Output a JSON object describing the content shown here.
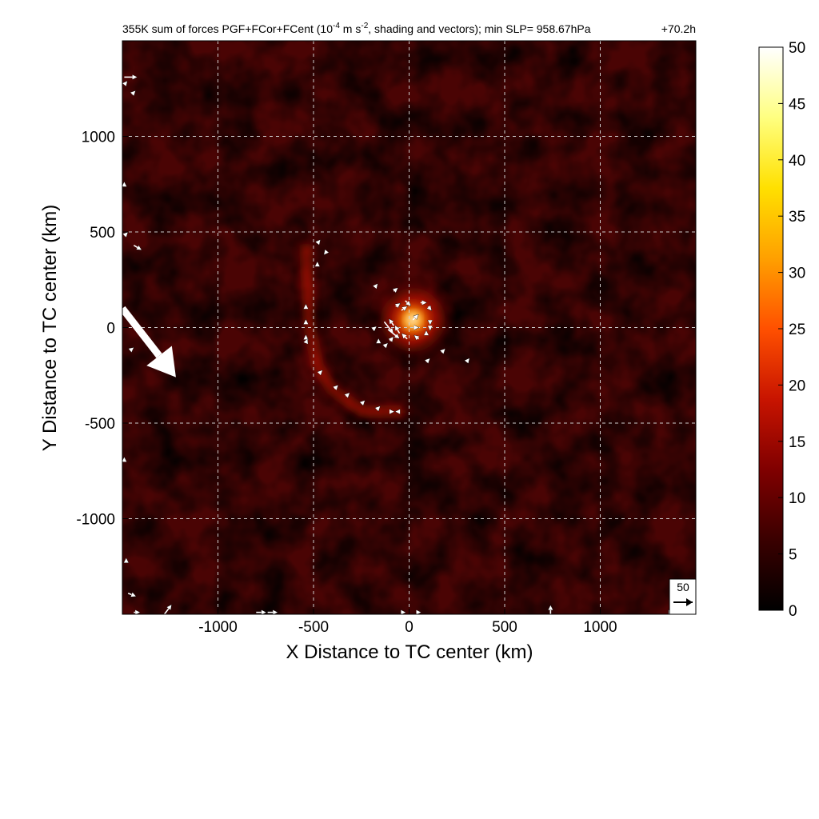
{
  "chart_data": {
    "type": "heatmap",
    "title": {
      "prefix": "355K sum of forces PGF+FCor+FCent (10",
      "exp1": "-4",
      "mid": " m s",
      "exp2": "-2",
      "suffix": ", shading and vectors); min SLP= 958.67hPa"
    },
    "time_label": "+70.2h",
    "xlabel": "X Distance to TC center (km)",
    "ylabel": "Y Distance to TC center (km)",
    "xlim": [
      -1500,
      1500
    ],
    "ylim": [
      -1500,
      1500
    ],
    "x_ticks": [
      {
        "value": -1000,
        "label": "-1000"
      },
      {
        "value": -500,
        "label": "-500"
      },
      {
        "value": 0,
        "label": "0"
      },
      {
        "value": 500,
        "label": "500"
      },
      {
        "value": 1000,
        "label": "1000"
      }
    ],
    "y_ticks": [
      {
        "value": 1000,
        "label": "1000"
      },
      {
        "value": 500,
        "label": "500"
      },
      {
        "value": 0,
        "label": "0"
      },
      {
        "value": -500,
        "label": "-500"
      },
      {
        "value": -1000,
        "label": "-1000"
      }
    ],
    "grid": true,
    "colorbar": {
      "range": [
        0,
        50
      ],
      "ticks": [
        {
          "value": 50,
          "label": "50"
        },
        {
          "value": 45,
          "label": "45"
        },
        {
          "value": 40,
          "label": "40"
        },
        {
          "value": 35,
          "label": "35"
        },
        {
          "value": 30,
          "label": "30"
        },
        {
          "value": 25,
          "label": "25"
        },
        {
          "value": 20,
          "label": "20"
        },
        {
          "value": 15,
          "label": "15"
        },
        {
          "value": 10,
          "label": "10"
        },
        {
          "value": 5,
          "label": "5"
        },
        {
          "value": 0,
          "label": "0"
        }
      ],
      "colors": [
        "#000000",
        "#3a0000",
        "#800000",
        "#c81400",
        "#ff5000",
        "#ffa000",
        "#ffe000",
        "#ffff80",
        "#ffffff"
      ]
    },
    "reference_vector": {
      "value": 50,
      "label": "50"
    },
    "features": {
      "eye_max_x": 20,
      "eye_max_y": 40,
      "eye_max_value": 48,
      "spiral_band_value": 20,
      "spiral_band_points": [
        [
          -540,
          420
        ],
        [
          -530,
          220
        ],
        [
          -520,
          0
        ],
        [
          -480,
          -200
        ],
        [
          -400,
          -330
        ],
        [
          -240,
          -440
        ],
        [
          -40,
          -440
        ]
      ],
      "large_vector": {
        "x0": -1500,
        "y0": 100,
        "x1": -1220,
        "y1": -260
      }
    },
    "vectors": [
      [
        -1490,
        1310,
        55,
        0
      ],
      [
        -1490,
        1270,
        8,
        10
      ],
      [
        -1450,
        1220,
        10,
        10
      ],
      [
        -1490,
        480,
        10,
        10
      ],
      [
        -1440,
        430,
        30,
        -18
      ],
      [
        -1490,
        740,
        0,
        10
      ],
      [
        -1460,
        -120,
        10,
        8
      ],
      [
        -1490,
        -700,
        0,
        10
      ],
      [
        -1480,
        -1230,
        0,
        12
      ],
      [
        -1470,
        -1390,
        30,
        -12
      ],
      [
        -1280,
        -1500,
        30,
        40
      ],
      [
        -1440,
        -1490,
        20,
        0
      ],
      [
        -800,
        -1490,
        40,
        0
      ],
      [
        -740,
        -1490,
        40,
        0
      ],
      [
        740,
        -1500,
        0,
        35
      ],
      [
        1360,
        -1490,
        10,
        0
      ],
      [
        -40,
        -1490,
        10,
        0
      ],
      [
        40,
        -1490,
        10,
        0
      ],
      [
        -430,
        400,
        -8,
        -10
      ],
      [
        -480,
        440,
        8,
        10
      ],
      [
        -480,
        320,
        0,
        12
      ],
      [
        -540,
        100,
        0,
        10
      ],
      [
        -540,
        20,
        0,
        10
      ],
      [
        -540,
        -60,
        0,
        10
      ],
      [
        -540,
        -80,
        4,
        10
      ],
      [
        -470,
        -240,
        8,
        8
      ],
      [
        -390,
        -320,
        10,
        10
      ],
      [
        -330,
        -360,
        10,
        10
      ],
      [
        -250,
        -400,
        10,
        10
      ],
      [
        -170,
        -430,
        10,
        10
      ],
      [
        -100,
        -440,
        10,
        0
      ],
      [
        -50,
        -440,
        -10,
        0
      ],
      [
        -190,
        -10,
        10,
        8
      ],
      [
        90,
        -180,
        10,
        10
      ],
      [
        170,
        -130,
        10,
        10
      ],
      [
        300,
        -180,
        8,
        10
      ],
      [
        -180,
        210,
        8,
        10
      ],
      [
        -80,
        190,
        12,
        10
      ],
      [
        -20,
        140,
        20,
        -18
      ],
      [
        60,
        130,
        20,
        0
      ],
      [
        100,
        110,
        10,
        -12
      ],
      [
        110,
        40,
        0,
        -14
      ],
      [
        110,
        10,
        0,
        -14
      ],
      [
        90,
        -40,
        0,
        12
      ],
      [
        50,
        -60,
        -14,
        12
      ],
      [
        -10,
        -60,
        -20,
        20
      ],
      [
        -50,
        -30,
        -18,
        30
      ],
      [
        -80,
        10,
        -18,
        25
      ],
      [
        -130,
        30,
        40,
        -50
      ],
      [
        -110,
        -10,
        50,
        -40
      ],
      [
        -100,
        -70,
        10,
        12
      ],
      [
        -160,
        -80,
        0,
        10
      ],
      [
        -130,
        -100,
        10,
        10
      ],
      [
        20,
        40,
        20,
        20
      ],
      [
        30,
        0,
        8,
        0
      ],
      [
        -40,
        90,
        20,
        14
      ],
      [
        -70,
        110,
        14,
        10
      ]
    ]
  }
}
